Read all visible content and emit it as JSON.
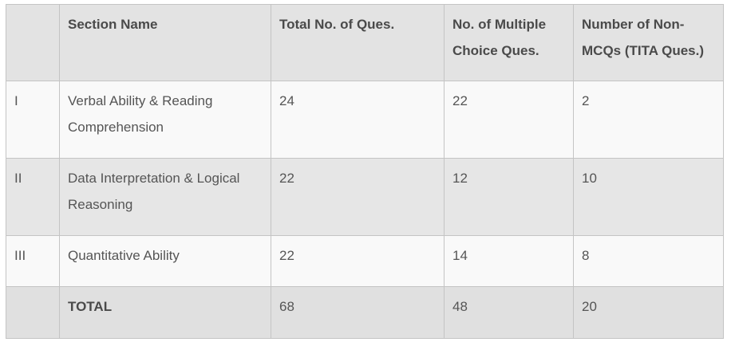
{
  "table": {
    "header": [
      "",
      "Section Name",
      "Total No. of Ques.",
      "No. of Multiple Choice Ques.",
      "Number of Non-MCQs (TITA Ques.)"
    ],
    "rows": [
      [
        "I",
        "Verbal Ability & Reading Comprehension",
        24,
        22,
        2
      ],
      [
        "II",
        "Data Interpretation & Logical Reasoning",
        22,
        12,
        10
      ],
      [
        "III",
        "Quantitative Ability",
        22,
        14,
        8
      ],
      [
        null,
        "TOTAL",
        68,
        48,
        20
      ]
    ]
  }
}
